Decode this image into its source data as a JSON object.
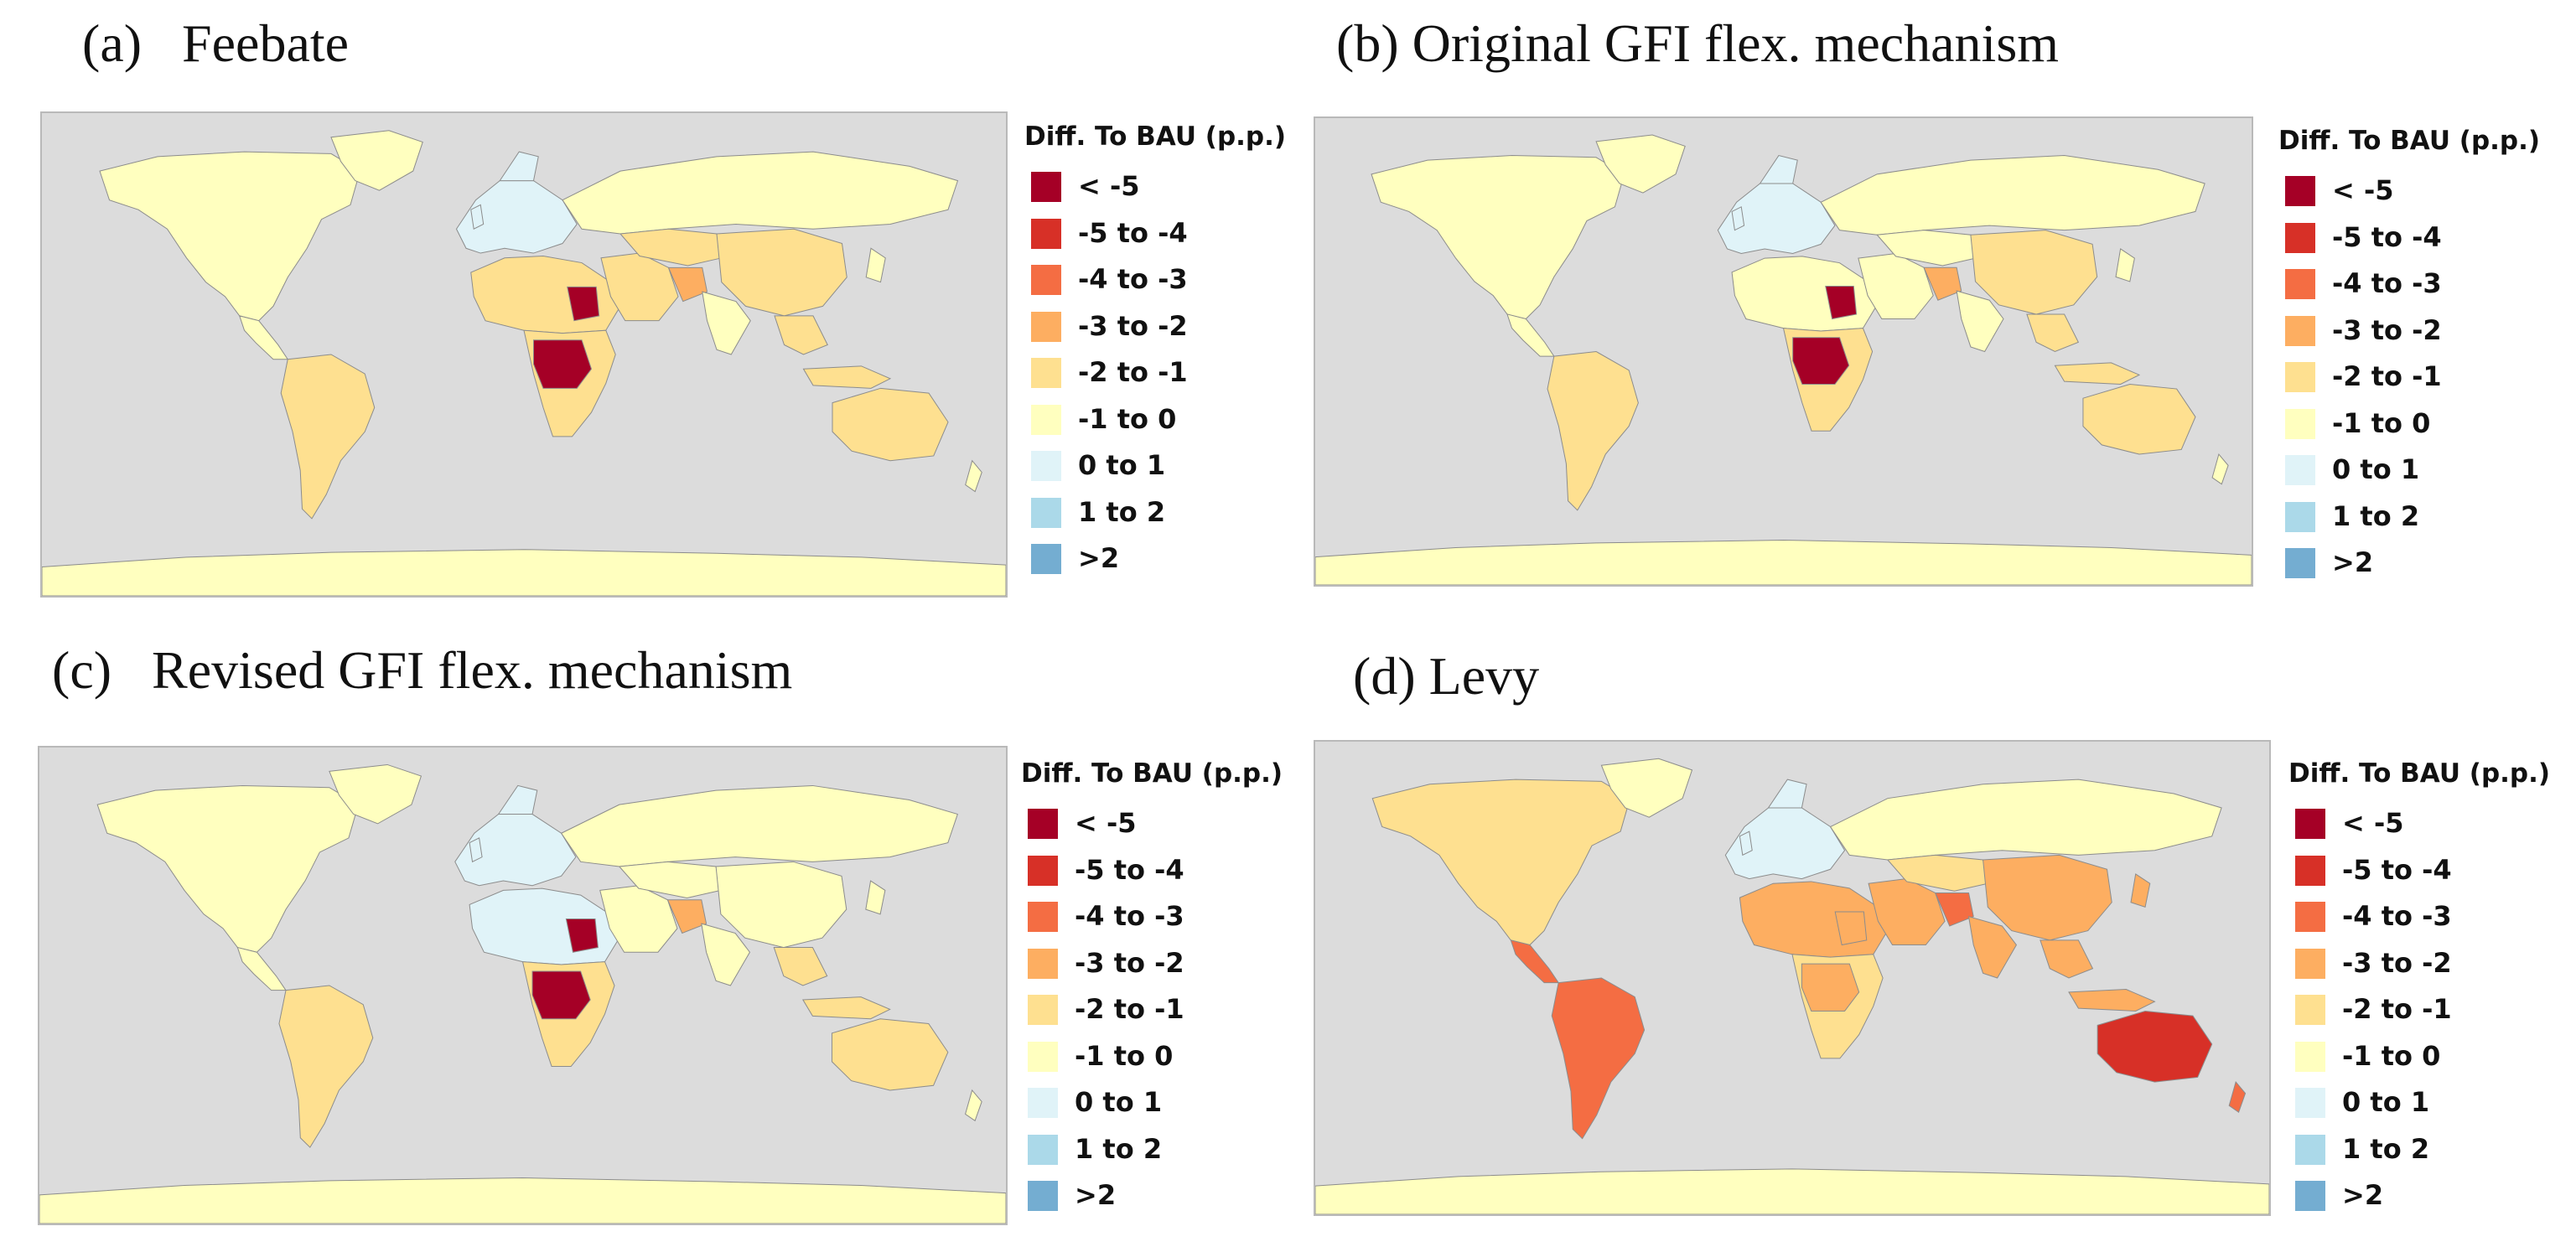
{
  "panels": [
    {
      "label": "(a)   Feebate",
      "map": "Feebate",
      "pattern": "feebate"
    },
    {
      "label": "(b) Original GFI flex. mechanism",
      "map": "Original GFI flex. mechanism",
      "pattern": "original"
    },
    {
      "label": "(c)   Revised GFI flex. mechanism",
      "map": "Revised GFI flex. mechanism",
      "pattern": "revised"
    },
    {
      "label": "(d) Levy",
      "map": "Levy",
      "pattern": "levy"
    }
  ],
  "legend": {
    "title": "Diff. To BAU (p.p.)",
    "items": [
      {
        "label": "< -5",
        "color": "#a50026"
      },
      {
        "label": "-5 to -4",
        "color": "#d73027"
      },
      {
        "label": "-4 to -3",
        "color": "#f46d43"
      },
      {
        "label": "-3 to -2",
        "color": "#fdae61"
      },
      {
        "label": "-2 to -1",
        "color": "#fee090"
      },
      {
        "label": "-1 to 0",
        "color": "#ffffbf"
      },
      {
        "label": "0 to 1",
        "color": "#e0f3f8"
      },
      {
        "label": "1 to 2",
        "color": "#abd9e9"
      },
      {
        "label": ">2",
        "color": "#74add1"
      }
    ]
  },
  "colors": {
    "ocean": "#dcdcdc",
    "border": "#8c8c8c"
  }
}
